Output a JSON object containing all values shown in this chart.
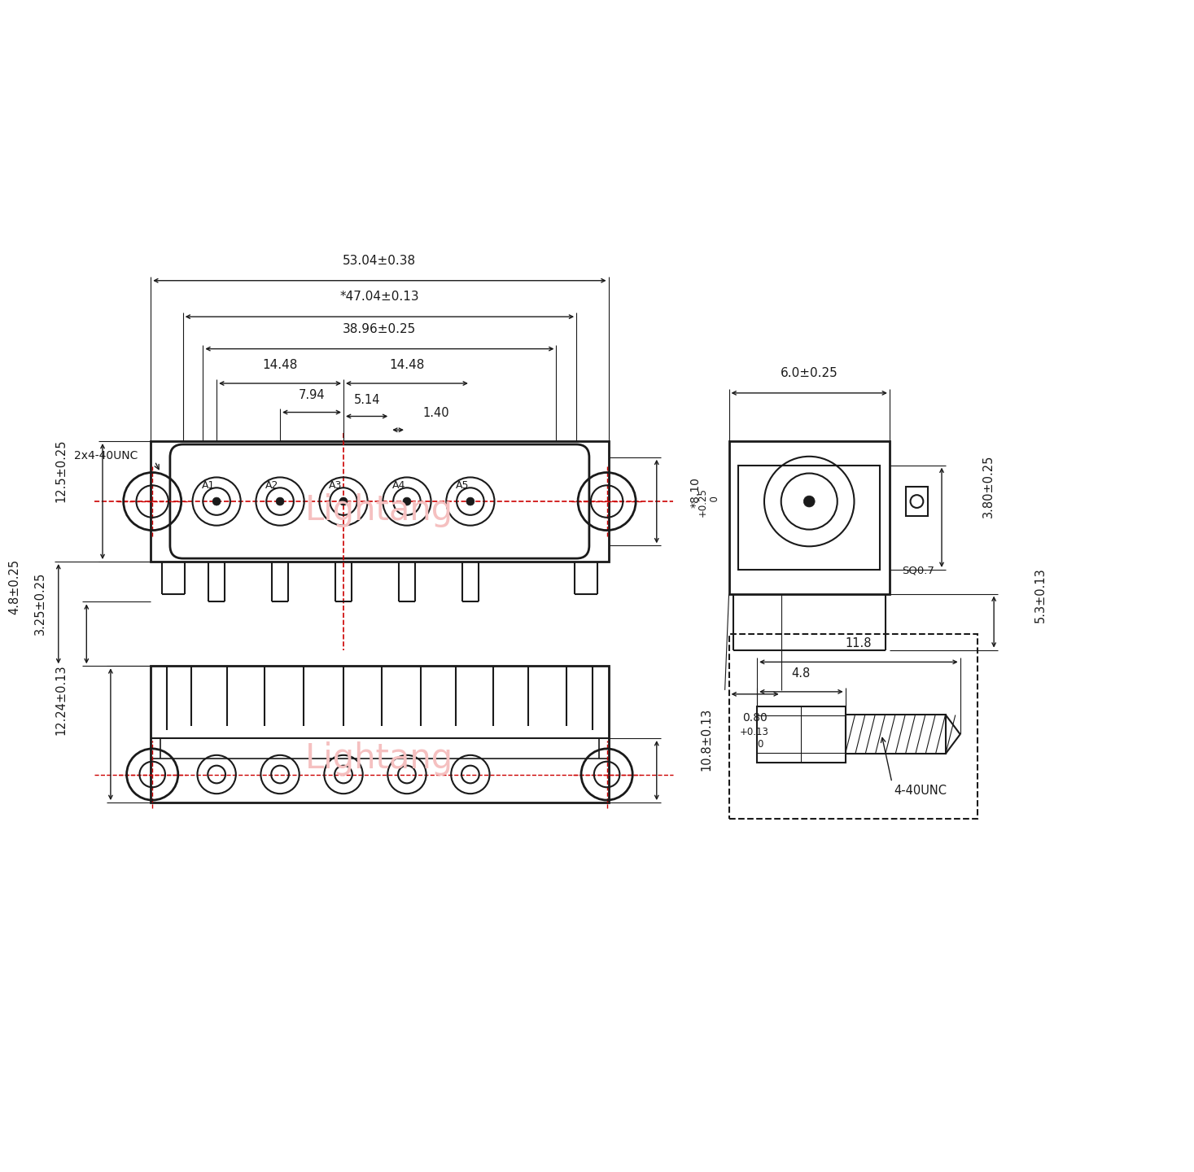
{
  "bg_color": "#ffffff",
  "line_color": "#1a1a1a",
  "red_color": "#cc0000",
  "watermark_color": "#f5c0c0",
  "watermark_text": "Lightang",
  "dims": {
    "dim_53": "53.04±0.38",
    "dim_47": "*47.04±0.13",
    "dim_38": "38.96±0.25",
    "dim_14L": "14.48",
    "dim_14R": "14.48",
    "dim_794": "7.94",
    "dim_514": "5.14",
    "dim_140": "1.40",
    "dim_125": "12.5±0.25",
    "dim_810": "*8.10",
    "dim_810b": "+0.25\n  0",
    "dim_2x4": "2x4-40UNC",
    "dim_60": "6.0±0.25",
    "dim_380": "3.80±0.25",
    "dim_080": "0.80",
    "dim_080b": "+0.13\n    0",
    "dim_sq07": "SQ0.7",
    "dim_530": "5.3±0.13",
    "dim_325": "3.25±0.25",
    "dim_48a": "4.8±0.25",
    "dim_1224": "12.24±0.13",
    "dim_108": "10.8±0.13",
    "dim_118": "11.8",
    "dim_48b": "4.8",
    "dim_440": "4-40UNC"
  }
}
